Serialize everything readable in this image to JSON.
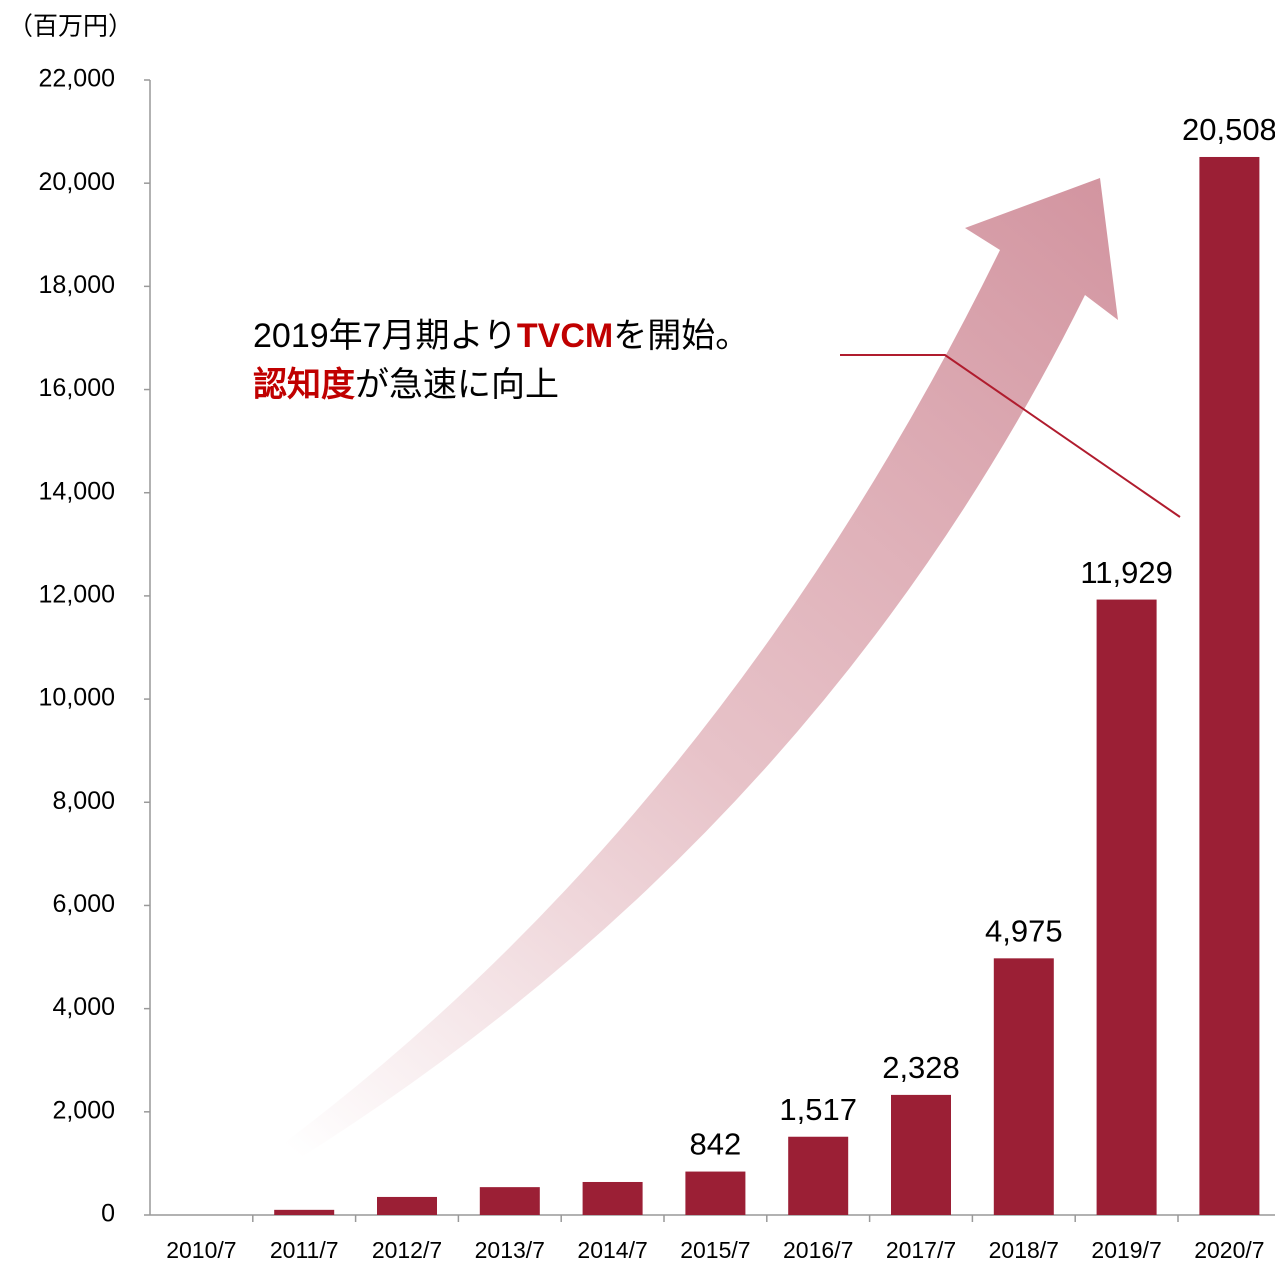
{
  "chart_data": {
    "type": "bar",
    "unit_label": "（百万円）",
    "categories": [
      "2010/7",
      "2011/7",
      "2012/7",
      "2013/7",
      "2014/7",
      "2015/7",
      "2016/7",
      "2017/7",
      "2018/7",
      "2019/7",
      "2020/7"
    ],
    "values": [
      0,
      100,
      350,
      540,
      640,
      842,
      1517,
      2328,
      4975,
      11929,
      20508
    ],
    "value_labels": [
      null,
      null,
      null,
      null,
      null,
      "842",
      "1,517",
      "2,328",
      "4,975",
      "11,929",
      "20,508"
    ],
    "color": "#9b1f35",
    "ylim": [
      0,
      22000
    ],
    "yticks": [
      0,
      {
        "value": 2000,
        "label": "2,000"
      },
      {
        "value": 4000,
        "label": "4,000"
      },
      {
        "value": 6000,
        "label": "6,000"
      },
      {
        "value": 8000,
        "label": "8,000"
      },
      {
        "value": 10000,
        "label": "10,000"
      },
      {
        "value": 12000,
        "label": "12,000"
      },
      {
        "value": 14000,
        "label": "14,000"
      },
      {
        "value": 16000,
        "label": "16,000"
      },
      {
        "value": 18000,
        "label": "18,000"
      },
      {
        "value": 20000,
        "label": "20,000"
      },
      {
        "value": 22000,
        "label": "22,000"
      }
    ],
    "grid": false,
    "annotation": [
      [
        "2019年7月期より",
        "TVCM",
        "を開始。"
      ],
      [
        "認知度",
        "が急速に向上"
      ]
    ]
  }
}
